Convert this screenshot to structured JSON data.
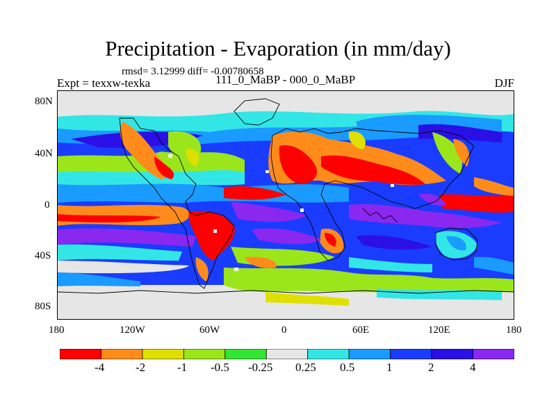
{
  "header": {
    "title": "Precipitation - Evaporation (in mm/day)",
    "stats": "rmsd= 3.12999 diff= -0.00780658",
    "experiment": "Expt = texxw-texka",
    "difference": "111_0_MaBP - 000_0_MaBP",
    "season": "DJF"
  },
  "axes": {
    "y_ticks": [
      "80N",
      "40N",
      "0",
      "40S",
      "80S"
    ],
    "x_ticks": [
      "180",
      "120W",
      "60W",
      "0",
      "60E",
      "120E",
      "180"
    ]
  },
  "colorbar": {
    "labels": [
      "-4",
      "-2",
      "-1",
      "-0.5",
      "-0.25",
      "0.25",
      "0.5",
      "1",
      "2",
      "4"
    ],
    "colors": [
      "#ff0000",
      "#ff8c1a",
      "#e0e000",
      "#9be61a",
      "#33e633",
      "#e6e6e6",
      "#33e6e6",
      "#1a9bff",
      "#1a3cff",
      "#2a10e6",
      "#8a28f0"
    ]
  }
}
